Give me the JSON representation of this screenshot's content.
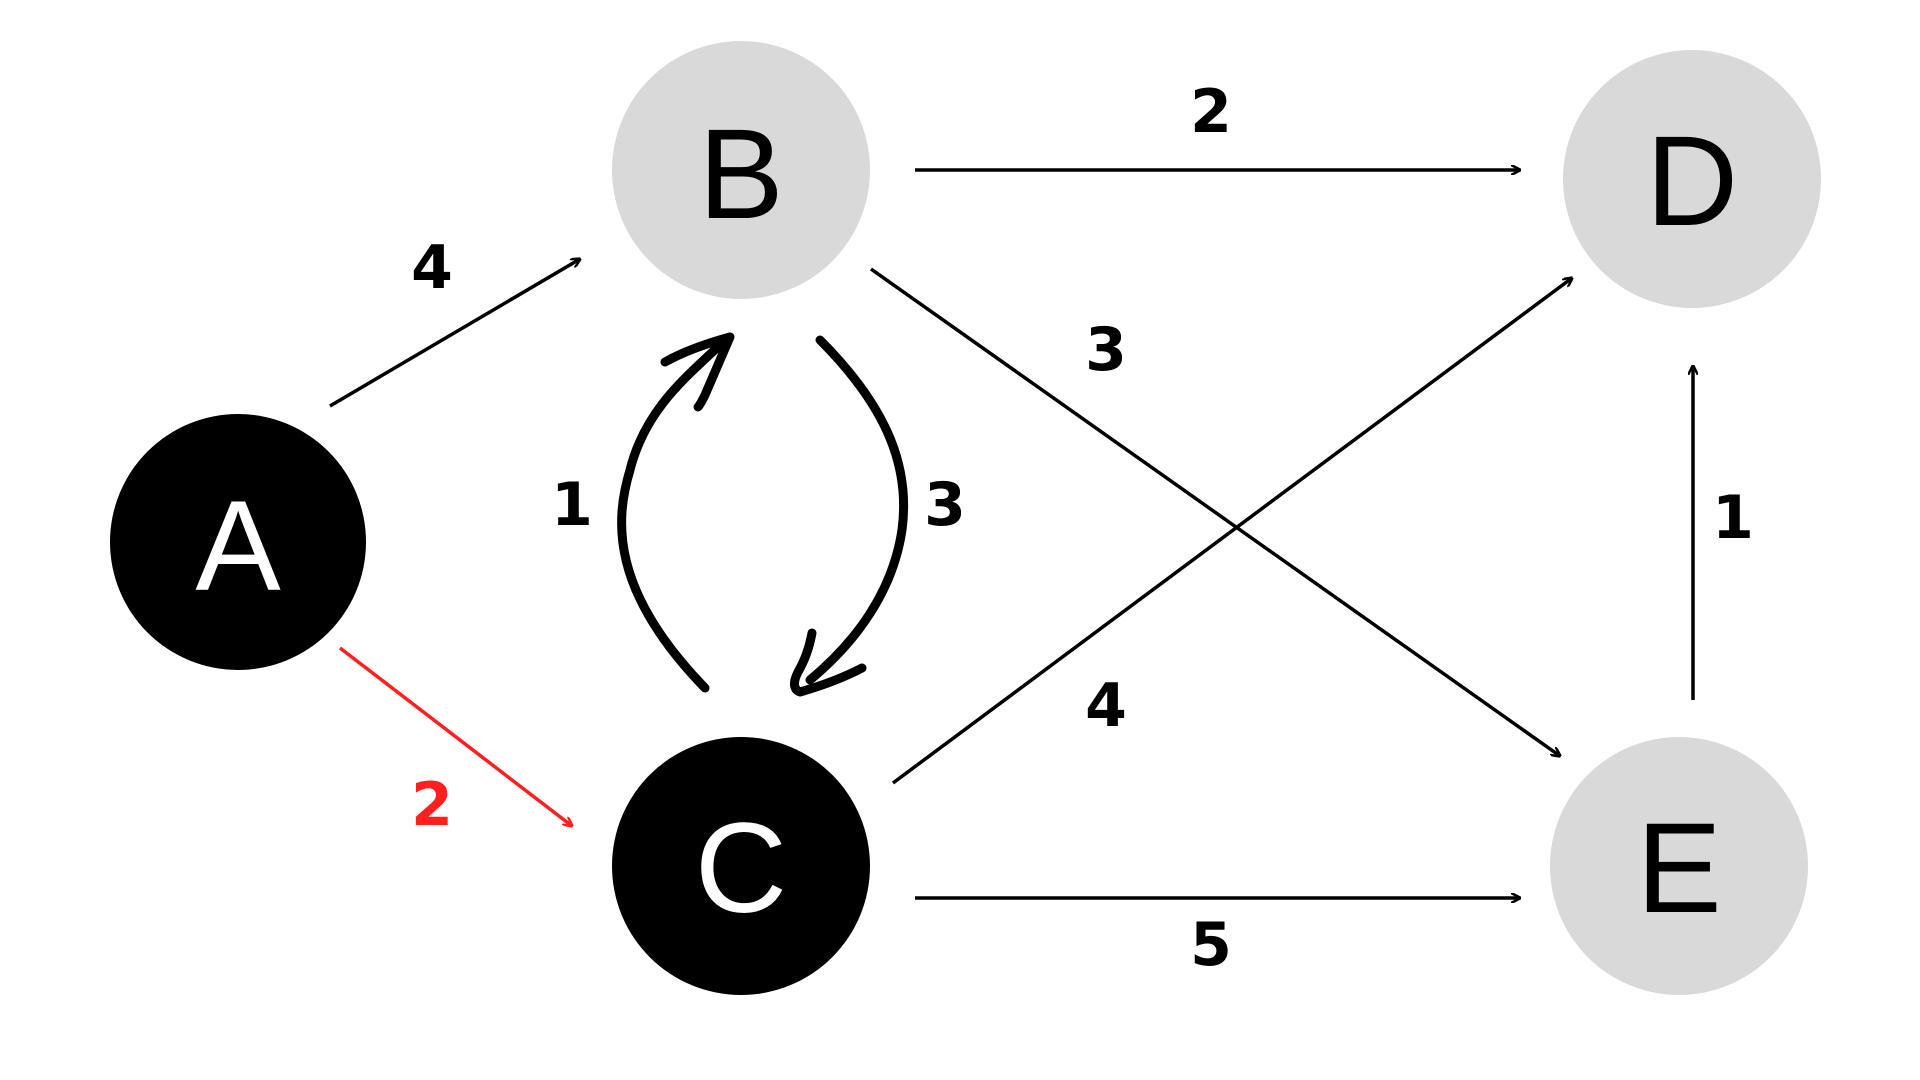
{
  "graph": {
    "colors": {
      "visited_fill": "#000000",
      "visited_text": "#ffffff",
      "unvisited_fill": "#d9d9d9",
      "unvisited_text": "#000000",
      "edge": "#000000",
      "highlight": "#ff1f1f"
    },
    "nodes": {
      "a": {
        "label": "A",
        "state": "visited"
      },
      "b": {
        "label": "B",
        "state": "unvisited"
      },
      "c": {
        "label": "C",
        "state": "visited"
      },
      "d": {
        "label": "D",
        "state": "unvisited"
      },
      "e": {
        "label": "E",
        "state": "unvisited"
      }
    },
    "edges": {
      "a_b": {
        "from": "A",
        "to": "B",
        "weight": "4",
        "highlighted": false
      },
      "a_c": {
        "from": "A",
        "to": "C",
        "weight": "2",
        "highlighted": true
      },
      "b_c": {
        "from": "B",
        "to": "C",
        "weight": "3",
        "highlighted": false
      },
      "c_b": {
        "from": "C",
        "to": "B",
        "weight": "1",
        "highlighted": false
      },
      "b_d": {
        "from": "B",
        "to": "D",
        "weight": "2",
        "highlighted": false
      },
      "b_e": {
        "from": "B",
        "to": "E",
        "weight": "3",
        "highlighted": false
      },
      "c_d": {
        "from": "C",
        "to": "D",
        "weight": "4",
        "highlighted": false
      },
      "c_e": {
        "from": "C",
        "to": "E",
        "weight": "5",
        "highlighted": false
      },
      "e_d": {
        "from": "E",
        "to": "D",
        "weight": "1",
        "highlighted": false
      }
    }
  }
}
